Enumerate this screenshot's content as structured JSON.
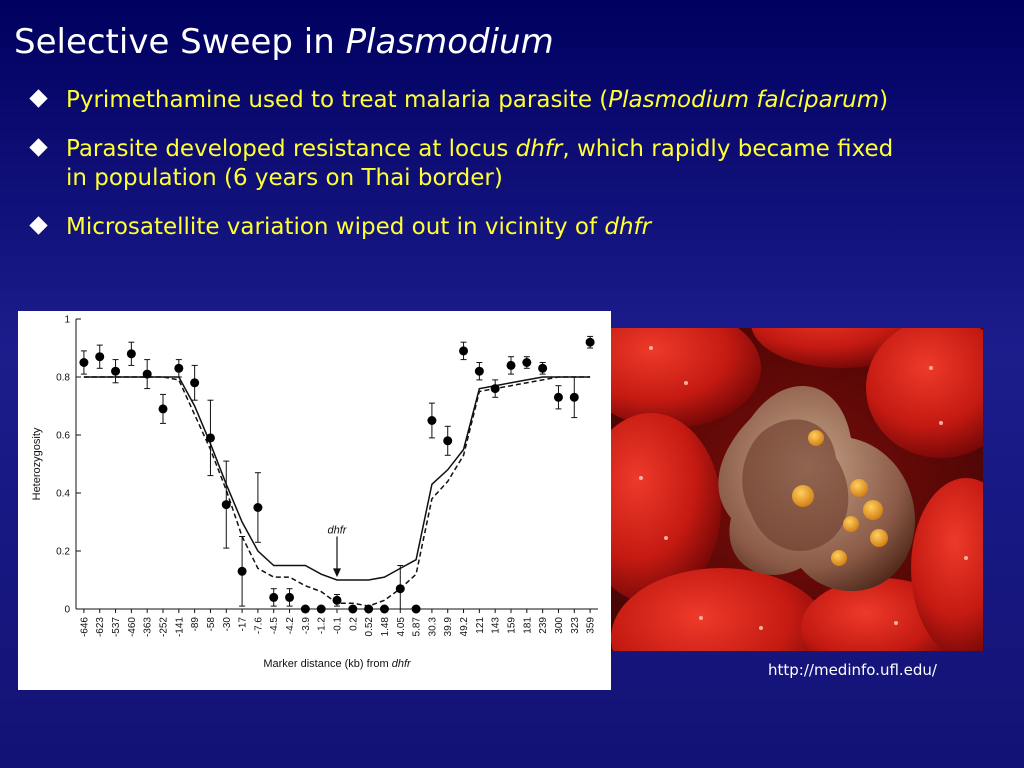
{
  "slide": {
    "title_plain": "Selective Sweep in ",
    "title_italic": "Plasmodium",
    "bullets": [
      {
        "parts": [
          {
            "text": "Pyrimethamine used to treat malaria parasite (",
            "italic": false
          },
          {
            "text": "Plasmodium falciparum",
            "italic": true
          },
          {
            "text": ")",
            "italic": false
          }
        ]
      },
      {
        "parts": [
          {
            "text": "Parasite developed resistance at locus ",
            "italic": false
          },
          {
            "text": "dhfr",
            "italic": true
          },
          {
            "text": ", which rapidly became fixed in population (6 years on Thai border)",
            "italic": false
          }
        ]
      },
      {
        "parts": [
          {
            "text": "Microsatellite variation wiped out in vicinity of ",
            "italic": false
          },
          {
            "text": "dhfr",
            "italic": true
          }
        ]
      }
    ],
    "source_url": "http://medinfo.ufl.edu/",
    "photo_icon": "red-blood-cells-with-malaria-parasite-image"
  },
  "chart_data": {
    "type": "scatter",
    "ylabel": "Heterozygosity",
    "xlabel_plain": "Marker distance (kb) from ",
    "xlabel_italic": "dhfr",
    "annotation": "dhfr",
    "ylim": [
      0,
      1
    ],
    "y_ticks": [
      "0",
      "0.2",
      "0.4",
      "0.6",
      "0.8",
      "1"
    ],
    "categories": [
      "-646",
      "-623",
      "-537",
      "-460",
      "-363",
      "-252",
      "-141",
      "-89",
      "-58",
      "-30",
      "-17",
      "-7.6",
      "-4.5",
      "-4.2",
      "-3.9",
      "-1.2",
      "-0.1",
      "0.2",
      "0.52",
      "1.48",
      "4.05",
      "5.87",
      "30.3",
      "39.9",
      "49.2",
      "121",
      "143",
      "159",
      "181",
      "239",
      "300",
      "323",
      "359"
    ],
    "points": [
      {
        "y": 0.85,
        "err": 0.04
      },
      {
        "y": 0.87,
        "err": 0.04
      },
      {
        "y": 0.82,
        "err": 0.04
      },
      {
        "y": 0.88,
        "err": 0.04
      },
      {
        "y": 0.81,
        "err": 0.05
      },
      {
        "y": 0.69,
        "err": 0.05
      },
      {
        "y": 0.83,
        "err": 0.03
      },
      {
        "y": 0.78,
        "err": 0.06
      },
      {
        "y": 0.59,
        "err": 0.13
      },
      {
        "y": 0.36,
        "err": 0.15
      },
      {
        "y": 0.13,
        "err": 0.12
      },
      {
        "y": 0.35,
        "err": 0.12
      },
      {
        "y": 0.04,
        "err": 0.03
      },
      {
        "y": 0.04,
        "err": 0.03
      },
      {
        "y": 0.0,
        "err": 0.0
      },
      {
        "y": 0.0,
        "err": 0.0
      },
      {
        "y": 0.03,
        "err": 0.02
      },
      {
        "y": 0.0,
        "err": 0.0
      },
      {
        "y": 0.0,
        "err": 0.0
      },
      {
        "y": 0.0,
        "err": 0.0
      },
      {
        "y": 0.07,
        "err": 0.08
      },
      {
        "y": 0.0,
        "err": 0.0
      },
      {
        "y": 0.65,
        "err": 0.06
      },
      {
        "y": 0.58,
        "err": 0.05
      },
      {
        "y": 0.89,
        "err": 0.03
      },
      {
        "y": 0.82,
        "err": 0.03
      },
      {
        "y": 0.76,
        "err": 0.03
      },
      {
        "y": 0.84,
        "err": 0.03
      },
      {
        "y": 0.85,
        "err": 0.02
      },
      {
        "y": 0.83,
        "err": 0.02
      },
      {
        "y": 0.73,
        "err": 0.04
      },
      {
        "y": 0.73,
        "err": 0.07
      },
      {
        "y": 0.92,
        "err": 0.02
      }
    ],
    "solid_curve": [
      0.8,
      0.8,
      0.8,
      0.8,
      0.8,
      0.8,
      0.8,
      0.7,
      0.57,
      0.43,
      0.3,
      0.2,
      0.15,
      0.15,
      0.15,
      0.12,
      0.1,
      0.1,
      0.1,
      0.11,
      0.14,
      0.17,
      0.43,
      0.48,
      0.55,
      0.76,
      0.77,
      0.78,
      0.79,
      0.8,
      0.8,
      0.8,
      0.8
    ],
    "dashed_curve": [
      0.8,
      0.8,
      0.8,
      0.8,
      0.8,
      0.8,
      0.79,
      0.67,
      0.55,
      0.41,
      0.25,
      0.14,
      0.11,
      0.11,
      0.08,
      0.06,
      0.02,
      0.02,
      0.01,
      0.03,
      0.07,
      0.12,
      0.38,
      0.44,
      0.53,
      0.75,
      0.76,
      0.77,
      0.78,
      0.79,
      0.8,
      0.8,
      0.8
    ]
  }
}
